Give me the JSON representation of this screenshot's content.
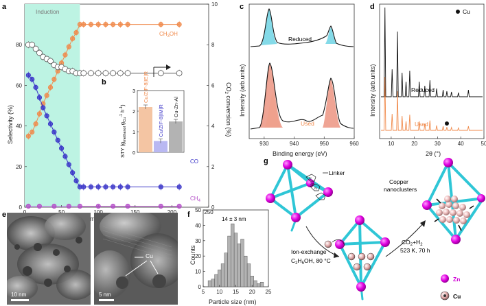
{
  "panel_labels": {
    "a": "a",
    "b": "b",
    "c": "c",
    "d": "d",
    "e": "e",
    "f": "f",
    "g": "g"
  },
  "colors": {
    "ch3oh": "#f08a4b",
    "co": "#3a34c8",
    "ch4": "#b44fc8",
    "co2_conv": "#555555",
    "induction": "#bdf3e3",
    "cyan_frame": "#2fc6d6",
    "zn": "#d000d6",
    "cu": "#e8b0b0",
    "bar_ieir": "#f4c5a3",
    "bar_imir": "#b9b8f2",
    "bar_cuznal": "#b3b3b3"
  },
  "panel_a": {
    "induction_label": "Induction",
    "series_labels": {
      "ch3oh": "CH3OH",
      "co": "CO",
      "ch4": "CH4"
    }
  },
  "panel_b": {
    "y_label": "STY (g_methanol g_Cu^-1 h^-1)",
    "bar_labels": [
      "Cu/ZIF-8|IE|R",
      "Cu/ZIF-8|IM|R",
      "Cu-Zn-Al"
    ]
  },
  "panel_c": {
    "reduced_label": "Reduced",
    "used_label": "Used"
  },
  "panel_d": {
    "legend_cu": "Cu",
    "reduced_label": "Reduced",
    "used_label": "Used"
  },
  "panel_e": {
    "scale_left": "10 nm",
    "scale_right": "5 nm",
    "cu_label": "Cu"
  },
  "panel_f": {
    "mean_label": "14 ± 3 nm"
  },
  "panel_g": {
    "linker_label": "Linker",
    "copper_label_1": "Copper",
    "copper_label_2": "nanoclusters",
    "ion_exchange_1": "Ion-exchange",
    "ion_exchange_2": "C2H5OH, 80 °C",
    "step2_1": "CO2+H2",
    "step2_2": "523 K, 70 h",
    "legend_zn": "Zn",
    "legend_cu": "Cu"
  },
  "chart_data": [
    {
      "panel": "a",
      "type": "scatter",
      "xlabel": "Time on stream (h)",
      "ylabel": "Selectivity (%)",
      "y2label": "CO2 conversion (%)",
      "xlim": [
        0,
        250
      ],
      "ylim": [
        0,
        100
      ],
      "y2lim": [
        0,
        10
      ],
      "xticks": [
        "0",
        "50",
        "100",
        "150",
        "200",
        "250"
      ],
      "yticks": [
        "0",
        "20",
        "40",
        "60",
        "80"
      ],
      "y2ticks": [
        "0",
        "2",
        "4",
        "6",
        "8",
        "10"
      ],
      "induction_range": [
        0,
        75
      ],
      "series": [
        {
          "name": "CH3OH",
          "x": [
            5,
            10,
            15,
            20,
            25,
            30,
            35,
            40,
            45,
            50,
            55,
            60,
            65,
            70,
            75,
            80,
            90,
            100,
            110,
            120,
            130,
            140,
            185,
            210
          ],
          "values": [
            35,
            37,
            41,
            46,
            51,
            55,
            59,
            63,
            67,
            71,
            75,
            79,
            83,
            86,
            90,
            90,
            90,
            90,
            90,
            90,
            90,
            90,
            90,
            90
          ]
        },
        {
          "name": "CO",
          "x": [
            5,
            10,
            15,
            20,
            25,
            30,
            35,
            40,
            45,
            50,
            55,
            60,
            65,
            70,
            75,
            80,
            90,
            100,
            110,
            120,
            130,
            140,
            185,
            210
          ],
          "values": [
            65,
            63,
            59,
            54,
            49,
            45,
            41,
            37,
            33,
            29,
            25,
            21,
            17,
            13,
            10,
            10,
            10,
            10,
            10,
            10,
            10,
            10,
            10,
            10
          ]
        },
        {
          "name": "CH4",
          "x": [
            5,
            20,
            40,
            60,
            75,
            100,
            120,
            140,
            185,
            210
          ],
          "values": [
            0.5,
            0.5,
            0.5,
            0.5,
            0.5,
            0.5,
            0.5,
            0.5,
            0.5,
            0.5
          ]
        },
        {
          "name": "CO2 conversion",
          "axis": "right",
          "x": [
            5,
            10,
            15,
            20,
            25,
            30,
            35,
            40,
            45,
            50,
            55,
            60,
            65,
            70,
            75,
            80,
            90,
            100,
            110,
            120,
            130,
            140,
            185,
            210
          ],
          "values": [
            8.0,
            8.0,
            7.8,
            7.6,
            7.4,
            7.3,
            7.2,
            7.0,
            6.9,
            6.9,
            6.8,
            6.7,
            6.7,
            6.6,
            6.6,
            6.6,
            6.6,
            6.6,
            6.6,
            6.6,
            6.6,
            6.6,
            6.6,
            6.6
          ]
        }
      ]
    },
    {
      "panel": "b",
      "type": "bar",
      "categories": [
        "Cu/ZIF-8|IE|R",
        "Cu/ZIF-8|IM|R",
        "Cu-Zn-Al"
      ],
      "values": [
        2.2,
        0.55,
        1.5
      ],
      "ylim": [
        0,
        3
      ],
      "yticks": [
        "0",
        "1",
        "2",
        "3"
      ]
    },
    {
      "panel": "c",
      "type": "line",
      "xlabel": "Binding energy (eV)",
      "ylabel": "Intensity (arb.units)",
      "xlim": [
        925,
        960
      ],
      "xticks": [
        "930",
        "940",
        "950",
        "960"
      ],
      "series": [
        {
          "name": "Reduced",
          "peaks": [
            932.3,
            952.1
          ]
        },
        {
          "name": "Used",
          "peaks": [
            932.3,
            934.5,
            952.1,
            954
          ]
        }
      ]
    },
    {
      "panel": "d",
      "type": "line",
      "xlabel": "2θ (°)",
      "ylabel": "Intensity (arb.units)",
      "xlim": [
        5,
        50
      ],
      "xticks": [
        "10",
        "20",
        "30",
        "40",
        "50"
      ],
      "series": [
        {
          "name": "Reduced"
        },
        {
          "name": "Used"
        }
      ],
      "cu_peak_2theta": 43.3
    },
    {
      "panel": "f",
      "type": "bar",
      "xlabel": "Particle size (nm)",
      "ylabel": "Counts",
      "xlim": [
        5,
        25
      ],
      "ylim": [
        0,
        50
      ],
      "xticks": [
        "5",
        "10",
        "15",
        "20",
        "25"
      ],
      "yticks": [
        "0",
        "10",
        "20",
        "30",
        "40",
        "50"
      ],
      "categories": [
        "7",
        "8",
        "9",
        "10",
        "11",
        "12",
        "13",
        "14",
        "15",
        "16",
        "17",
        "18",
        "19",
        "20",
        "21",
        "22",
        "23"
      ],
      "values": [
        4,
        5,
        8,
        11,
        15,
        22,
        33,
        41,
        35,
        28,
        31,
        20,
        15,
        7,
        4,
        2,
        3
      ]
    }
  ]
}
